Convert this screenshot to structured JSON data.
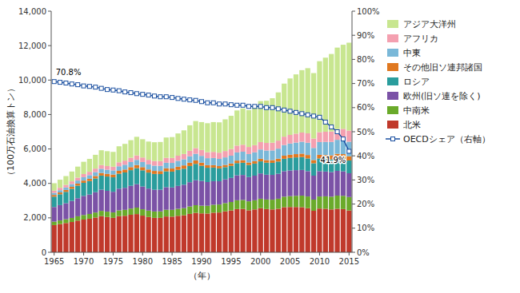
{
  "chart_data": {
    "type": "bar",
    "stacked": true,
    "grid": false,
    "legend": "right",
    "xlabel": "（年）",
    "ylabel": "（100万石油換算トン）",
    "categories": [
      "1965",
      null,
      null,
      null,
      null,
      "1970",
      null,
      null,
      null,
      null,
      "1975",
      null,
      null,
      null,
      null,
      "1980",
      null,
      null,
      null,
      null,
      "1985",
      null,
      null,
      null,
      null,
      "1990",
      null,
      null,
      null,
      null,
      "1995",
      null,
      null,
      null,
      null,
      "2000",
      null,
      null,
      null,
      null,
      "2005",
      null,
      null,
      null,
      null,
      "2010",
      null,
      null,
      null,
      null,
      "2015"
    ],
    "ylim": [
      0,
      14000
    ],
    "yticks": [
      0,
      {
        "value": 2000,
        "label": "2,000"
      },
      {
        "value": 4000,
        "label": "4,000"
      },
      {
        "value": 6000,
        "label": "6,000"
      },
      {
        "value": 8000,
        "label": "8,000"
      },
      {
        "value": 10000,
        "label": "10,000"
      },
      {
        "value": 12000,
        "label": "12,000"
      },
      {
        "value": 14000,
        "label": "14,000"
      }
    ],
    "y2lim": [
      0,
      100
    ],
    "y2ticks": [
      {
        "value": 0,
        "label": "0%"
      },
      {
        "value": 10,
        "label": "10%"
      },
      {
        "value": 20,
        "label": "20%"
      },
      {
        "value": 30,
        "label": "30%"
      },
      {
        "value": 40,
        "label": "40%"
      },
      {
        "value": 50,
        "label": "50%"
      },
      {
        "value": 60,
        "label": "60%"
      },
      {
        "value": 70,
        "label": "70%"
      },
      {
        "value": 80,
        "label": "80%"
      },
      {
        "value": 90,
        "label": "90%"
      },
      {
        "value": 100,
        "label": "100%"
      }
    ],
    "series": [
      {
        "name": "北米",
        "color": "#c0392b",
        "values": [
          1580,
          1640,
          1700,
          1760,
          1840,
          1900,
          1950,
          2020,
          2100,
          2050,
          2000,
          2100,
          2120,
          2180,
          2220,
          2130,
          2050,
          2000,
          2000,
          2080,
          2070,
          2120,
          2150,
          2230,
          2290,
          2260,
          2250,
          2300,
          2310,
          2380,
          2430,
          2510,
          2520,
          2440,
          2490,
          2560,
          2510,
          2490,
          2530,
          2620,
          2630,
          2630,
          2620,
          2560,
          2410,
          2540,
          2530,
          2490,
          2530,
          2510,
          2430
        ]
      },
      {
        "name": "中南米",
        "color": "#6aaa2a",
        "values": [
          200,
          210,
          220,
          235,
          250,
          265,
          275,
          290,
          305,
          310,
          315,
          335,
          345,
          360,
          375,
          370,
          370,
          370,
          375,
          390,
          395,
          405,
          415,
          430,
          445,
          445,
          450,
          460,
          465,
          475,
          490,
          510,
          520,
          520,
          530,
          550,
          555,
          565,
          580,
          610,
          630,
          650,
          670,
          680,
          650,
          700,
          720,
          740,
          760,
          770,
          780
        ]
      },
      {
        "name": "欧州(旧ソ連を除く)",
        "color": "#7b52a6",
        "values": [
          850,
          890,
          930,
          990,
          1050,
          1110,
          1130,
          1180,
          1230,
          1210,
          1200,
          1260,
          1280,
          1320,
          1360,
          1320,
          1280,
          1260,
          1260,
          1310,
          1300,
          1330,
          1360,
          1410,
          1450,
          1440,
          1380,
          1370,
          1350,
          1380,
          1400,
          1450,
          1450,
          1410,
          1430,
          1470,
          1440,
          1440,
          1450,
          1480,
          1490,
          1490,
          1490,
          1470,
          1390,
          1470,
          1440,
          1430,
          1440,
          1420,
          1380
        ]
      },
      {
        "name": "ロシア",
        "color": "#2a9d9d",
        "values": [
          600,
          630,
          660,
          700,
          730,
          760,
          780,
          800,
          820,
          830,
          840,
          870,
          890,
          910,
          930,
          940,
          930,
          920,
          910,
          920,
          920,
          930,
          930,
          940,
          950,
          880,
          830,
          790,
          750,
          710,
          700,
          710,
          710,
          700,
          700,
          700,
          700,
          700,
          710,
          720,
          730,
          740,
          750,
          740,
          720,
          740,
          740,
          740,
          750,
          750,
          740
        ]
      },
      {
        "name": "その他旧ソ連邦諸国",
        "color": "#e07820",
        "values": [
          100,
          105,
          110,
          115,
          120,
          130,
          135,
          140,
          150,
          155,
          160,
          165,
          170,
          175,
          180,
          185,
          180,
          175,
          170,
          180,
          180,
          185,
          190,
          195,
          200,
          180,
          150,
          140,
          130,
          130,
          135,
          145,
          150,
          145,
          145,
          150,
          150,
          155,
          165,
          180,
          185,
          190,
          200,
          200,
          190,
          210,
          220,
          230,
          240,
          250,
          250
        ]
      },
      {
        "name": "中東",
        "color": "#7ab8d8",
        "values": [
          120,
          130,
          145,
          160,
          175,
          195,
          210,
          225,
          245,
          240,
          240,
          265,
          280,
          295,
          300,
          295,
          295,
          305,
          305,
          320,
          325,
          340,
          355,
          370,
          385,
          395,
          405,
          415,
          420,
          435,
          455,
          475,
          490,
          490,
          510,
          540,
          555,
          565,
          585,
          620,
          650,
          670,
          690,
          710,
          700,
          740,
          760,
          780,
          810,
          830,
          840
        ]
      },
      {
        "name": "アフリカ",
        "color": "#f4a0b0",
        "values": [
          130,
          140,
          150,
          160,
          170,
          185,
          195,
          205,
          215,
          215,
          215,
          230,
          240,
          250,
          260,
          265,
          265,
          270,
          275,
          285,
          290,
          300,
          310,
          320,
          330,
          340,
          350,
          355,
          360,
          370,
          385,
          395,
          405,
          410,
          415,
          430,
          440,
          450,
          465,
          485,
          500,
          520,
          535,
          550,
          545,
          575,
          590,
          605,
          625,
          640,
          650
        ]
      },
      {
        "name": "アジア大洋州",
        "color": "#c8e690",
        "values": [
          430,
          470,
          510,
          570,
          640,
          710,
          750,
          800,
          860,
          860,
          860,
          930,
          970,
          1020,
          1080,
          1060,
          1060,
          1090,
          1110,
          1180,
          1210,
          1290,
          1370,
          1480,
          1570,
          1620,
          1680,
          1730,
          1760,
          1840,
          1930,
          2040,
          2110,
          2140,
          2250,
          2380,
          2450,
          2580,
          2800,
          3080,
          3280,
          3440,
          3620,
          3780,
          3800,
          4120,
          4300,
          4500,
          4730,
          4880,
          5100
        ]
      },
      {
        "name": "OECDシェア（右軸）",
        "type": "line",
        "axis": "y2",
        "color": "#1a4fa0",
        "marker": "square",
        "line_style": "solid",
        "values": [
          70.8,
          70.5,
          70.2,
          69.8,
          69.5,
          69.0,
          68.8,
          68.5,
          68.0,
          67.5,
          67.3,
          67.0,
          66.5,
          66.2,
          65.8,
          65.5,
          65.2,
          64.8,
          64.5,
          64.5,
          64.2,
          63.8,
          63.5,
          63.2,
          63.0,
          62.5,
          62.0,
          62.0,
          61.5,
          61.5,
          61.2,
          61.0,
          61.0,
          60.5,
          60.5,
          60.5,
          60.0,
          60.0,
          59.5,
          59.0,
          58.5,
          58.0,
          57.5,
          57.0,
          56.5,
          56.0,
          54.0,
          52.0,
          50.0,
          47.0,
          41.9
        ]
      }
    ],
    "annotations": [
      "70.8%",
      "41.9%"
    ]
  }
}
